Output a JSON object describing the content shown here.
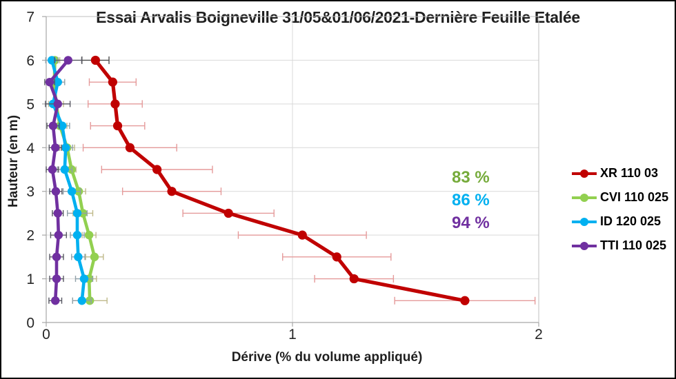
{
  "title": "Essai Arvalis Boigneville 31/05&01/06/2021-Dernière Feuille Etalée",
  "chart_data": {
    "type": "line",
    "title": "Essai Arvalis Boigneville 31/05&01/06/2021-Dernière Feuille Etalée",
    "xlabel": "Dérive (% du volume appliqué)",
    "ylabel": "Hauteur (en m)",
    "xlim": [
      0,
      2
    ],
    "ylim": [
      0,
      7
    ],
    "x_ticks": [
      0,
      1,
      2
    ],
    "y_ticks": [
      0,
      1,
      2,
      3,
      4,
      5,
      6,
      7
    ],
    "grid": true,
    "legend_position": "right",
    "heights": [
      6,
      5.5,
      5,
      4.5,
      4,
      3.5,
      3,
      2.5,
      2,
      1.5,
      1,
      0.5
    ],
    "series": [
      {
        "name": "XR 110 03",
        "color": "#C00000",
        "error_color": "#E59A9A",
        "error_color_overrides": {
          "0": "#4D4D4D"
        },
        "values": [
          0.2,
          0.27,
          0.28,
          0.29,
          0.34,
          0.45,
          0.51,
          0.74,
          1.04,
          1.18,
          1.25,
          1.7
        ],
        "errors": [
          0.055,
          0.095,
          0.11,
          0.11,
          0.19,
          0.225,
          0.2,
          0.185,
          0.26,
          0.22,
          0.16,
          0.285
        ]
      },
      {
        "name": "CVI 110 025",
        "color": "#92D050",
        "error_color": "#BFB98A",
        "values": [
          0.035,
          0.033,
          0.04,
          0.056,
          0.085,
          0.103,
          0.132,
          0.149,
          0.174,
          0.196,
          0.174,
          0.177
        ],
        "errors": [
          0.02,
          0.02,
          0.03,
          0.028,
          0.03,
          0.018,
          0.028,
          0.04,
          0.028,
          0.036,
          0.03,
          0.07
        ]
      },
      {
        "name": "ID 120 025",
        "color": "#00B0F0",
        "error_color": "#90A0A8",
        "values": [
          0.023,
          0.047,
          0.028,
          0.065,
          0.079,
          0.075,
          0.104,
          0.126,
          0.126,
          0.13,
          0.154,
          0.145
        ],
        "errors": [
          0.025,
          0.028,
          0.03,
          0.03,
          0.028,
          0.03,
          0.035,
          0.04,
          0.028,
          0.027,
          0.035,
          0.038
        ]
      },
      {
        "name": "TTI 110 025",
        "color": "#7030A0",
        "error_color": "#565661",
        "values": [
          0.089,
          0.014,
          0.047,
          0.028,
          0.037,
          0.025,
          0.039,
          0.047,
          0.05,
          0.042,
          0.042,
          0.037
        ],
        "errors": [
          0.055,
          0.02,
          0.05,
          0.025,
          0.025,
          0.025,
          0.025,
          0.022,
          0.032,
          0.028,
          0.028,
          0.026
        ]
      }
    ],
    "annotations": [
      {
        "text": "83 %",
        "color": "#76AB3B"
      },
      {
        "text": "86 %",
        "color": "#00B0F0"
      },
      {
        "text": "94 %",
        "color": "#7030A0"
      }
    ],
    "axis_color": "#A6A6A6",
    "gridline_color": "#D9D9D9",
    "plot_border_color": "#BFBFBF"
  }
}
